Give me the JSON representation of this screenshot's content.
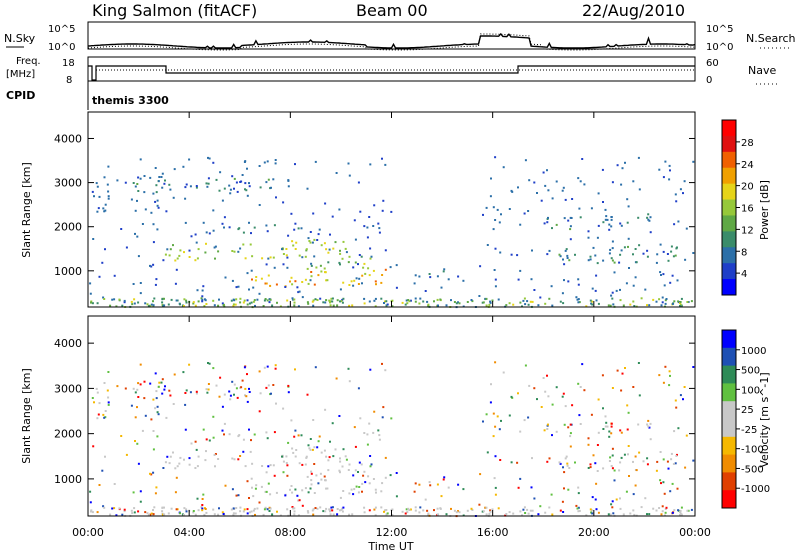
{
  "header": {
    "station": "King Salmon (fitACF)",
    "beam": "Beam 00",
    "date": "22/Aug/2010"
  },
  "top_panels": {
    "nsky_label": "N.Sky",
    "nsearch_label": "N.Search",
    "nsky_ticks": [
      "10^5",
      "10^0"
    ],
    "nsearch_ticks": [
      "10^5",
      "10^0"
    ],
    "freq_label_1": "Freq.",
    "freq_label_2": "[MHz]",
    "freq_ticks": [
      "18",
      "8"
    ],
    "nave_label": "Nave",
    "nave_ticks": [
      "60",
      "0"
    ],
    "cpid_label": "CPID",
    "cpid_value": "themis 3300"
  },
  "colors": {
    "power_scale": [
      "#0000ff",
      "#1f3fc8",
      "#2b6fa8",
      "#3a8c6a",
      "#5fa845",
      "#96c83a",
      "#e6d419",
      "#f0a000",
      "#f06000",
      "#e01010",
      "#ff0000"
    ],
    "velocity_scale": [
      "#ff0000",
      "#e04000",
      "#f08c00",
      "#f5b800",
      "#c8c8c8",
      "#c8c8c8",
      "#60c040",
      "#2e8b57",
      "#1e50b4",
      "#0000ff"
    ],
    "ground_scatter": "#c8c8c8"
  },
  "chart_data": [
    {
      "type": "heatmap",
      "name": "power",
      "ylabel": "Slant Range [km]",
      "xlabel": "",
      "colorbar_label": "Power [dB]",
      "colorbar_ticks": [
        "28",
        "24",
        "20",
        "16",
        "12",
        "8",
        "4"
      ],
      "colorbar_values": [
        28,
        24,
        20,
        16,
        12,
        8,
        4
      ],
      "clim": [
        0,
        32
      ],
      "ylim": [
        180,
        4600
      ],
      "xlim": [
        0,
        24
      ],
      "yticks": [
        "4000",
        "3000",
        "2000",
        "1000"
      ],
      "ytick_values": [
        4000,
        3000,
        2000,
        1000
      ],
      "scatter_regions": [
        {
          "t0": 3.0,
          "t1": 10.2,
          "r0": 1300,
          "r1": 1700,
          "level": 14
        },
        {
          "t0": 5.8,
          "t1": 11.8,
          "r0": 650,
          "r1": 1000,
          "level": 18
        },
        {
          "t0": 8.5,
          "t1": 11.5,
          "r0": 1000,
          "r1": 1350,
          "level": 12
        },
        {
          "t0": 4.0,
          "t1": 8.5,
          "r0": 1850,
          "r1": 2050,
          "level": 6
        },
        {
          "t0": 1.5,
          "t1": 7.5,
          "r0": 2800,
          "r1": 3100,
          "level": 6
        },
        {
          "t0": 13.2,
          "t1": 14.5,
          "r0": 950,
          "r1": 1050,
          "level": 6
        },
        {
          "t0": 18.0,
          "t1": 22.5,
          "r0": 2000,
          "r1": 2300,
          "level": 6
        },
        {
          "t0": 18.5,
          "t1": 23.5,
          "r0": 1200,
          "r1": 1600,
          "level": 6
        }
      ]
    },
    {
      "type": "heatmap",
      "name": "velocity",
      "ylabel": "Slant Range [km]",
      "xlabel": "Time UT",
      "colorbar_label": "Velocity [m s^-1]",
      "colorbar_ticks": [
        "1000",
        "500",
        "100",
        "25",
        "-25",
        "-100",
        "-500",
        "-1000"
      ],
      "colorbar_values": [
        1000,
        500,
        100,
        25,
        -25,
        -100,
        -500,
        -1000
      ],
      "ylim": [
        180,
        4600
      ],
      "xlim": [
        0,
        24
      ],
      "yticks": [
        "4000",
        "3000",
        "2000",
        "1000"
      ],
      "ytick_values": [
        4000,
        3000,
        2000,
        1000
      ],
      "xticks": [
        "00:00",
        "04:00",
        "08:00",
        "12:00",
        "16:00",
        "20:00",
        "00:00"
      ],
      "xtick_values": [
        0,
        4,
        8,
        12,
        16,
        20,
        24
      ]
    }
  ]
}
